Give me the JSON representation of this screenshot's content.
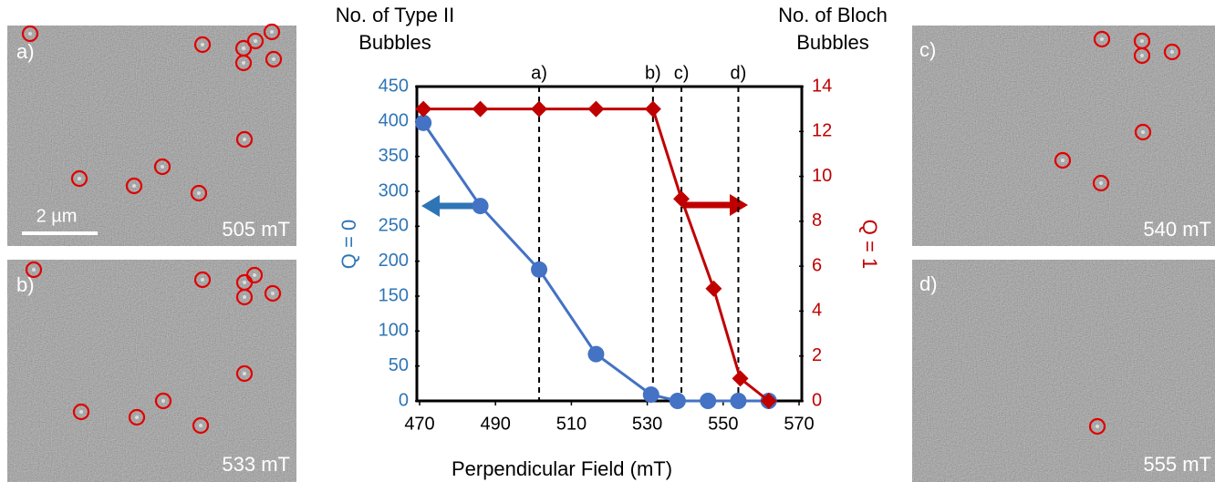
{
  "chart_data": {
    "type": "line",
    "x_label": "Perpendicular Field (mT)",
    "y_label": "Q = 0",
    "y2_label": "Q = 1",
    "xlim": [
      470,
      570
    ],
    "xticks": [
      470,
      490,
      510,
      530,
      550,
      570
    ],
    "ylim": [
      0,
      450
    ],
    "yticks": [
      0,
      50,
      100,
      150,
      200,
      250,
      300,
      350,
      400,
      450
    ],
    "y2lim": [
      0,
      14
    ],
    "y2ticks": [
      0,
      2,
      4,
      6,
      8,
      10,
      12,
      14
    ],
    "y_color": "#2e75b6",
    "y2_color": "#c00000",
    "series": [
      {
        "name": "No. of Type II Bubbles",
        "color": "#4472c4",
        "marker": "circle",
        "axis": "y",
        "x": [
          471,
          486,
          501.5,
          516.5,
          531,
          538,
          546,
          554,
          562
        ],
        "values": [
          398,
          279,
          188,
          67,
          9,
          0,
          0,
          0,
          0
        ]
      },
      {
        "name": "No. of Bloch Bubbles",
        "color": "#c00000",
        "marker": "diamond",
        "axis": "y2",
        "x": [
          471,
          486,
          501.5,
          516.5,
          531.5,
          539,
          547.5,
          554.5,
          562
        ],
        "values": [
          13,
          13,
          13,
          13,
          13,
          9,
          5,
          1,
          0
        ]
      }
    ],
    "markers": [
      {
        "label": "a)",
        "x": 501.5
      },
      {
        "label": "b)",
        "x": 531.5
      },
      {
        "label": "c)",
        "x": 539
      },
      {
        "label": "d)",
        "x": 554
      }
    ]
  },
  "panels": [
    {
      "label": "a)",
      "field": "505 mT"
    },
    {
      "label": "b)",
      "field": "533 mT"
    },
    {
      "label": "c)",
      "field": "540 mT"
    },
    {
      "label": "d)",
      "field": "555 mT"
    }
  ],
  "scale_bar": "2 µm"
}
